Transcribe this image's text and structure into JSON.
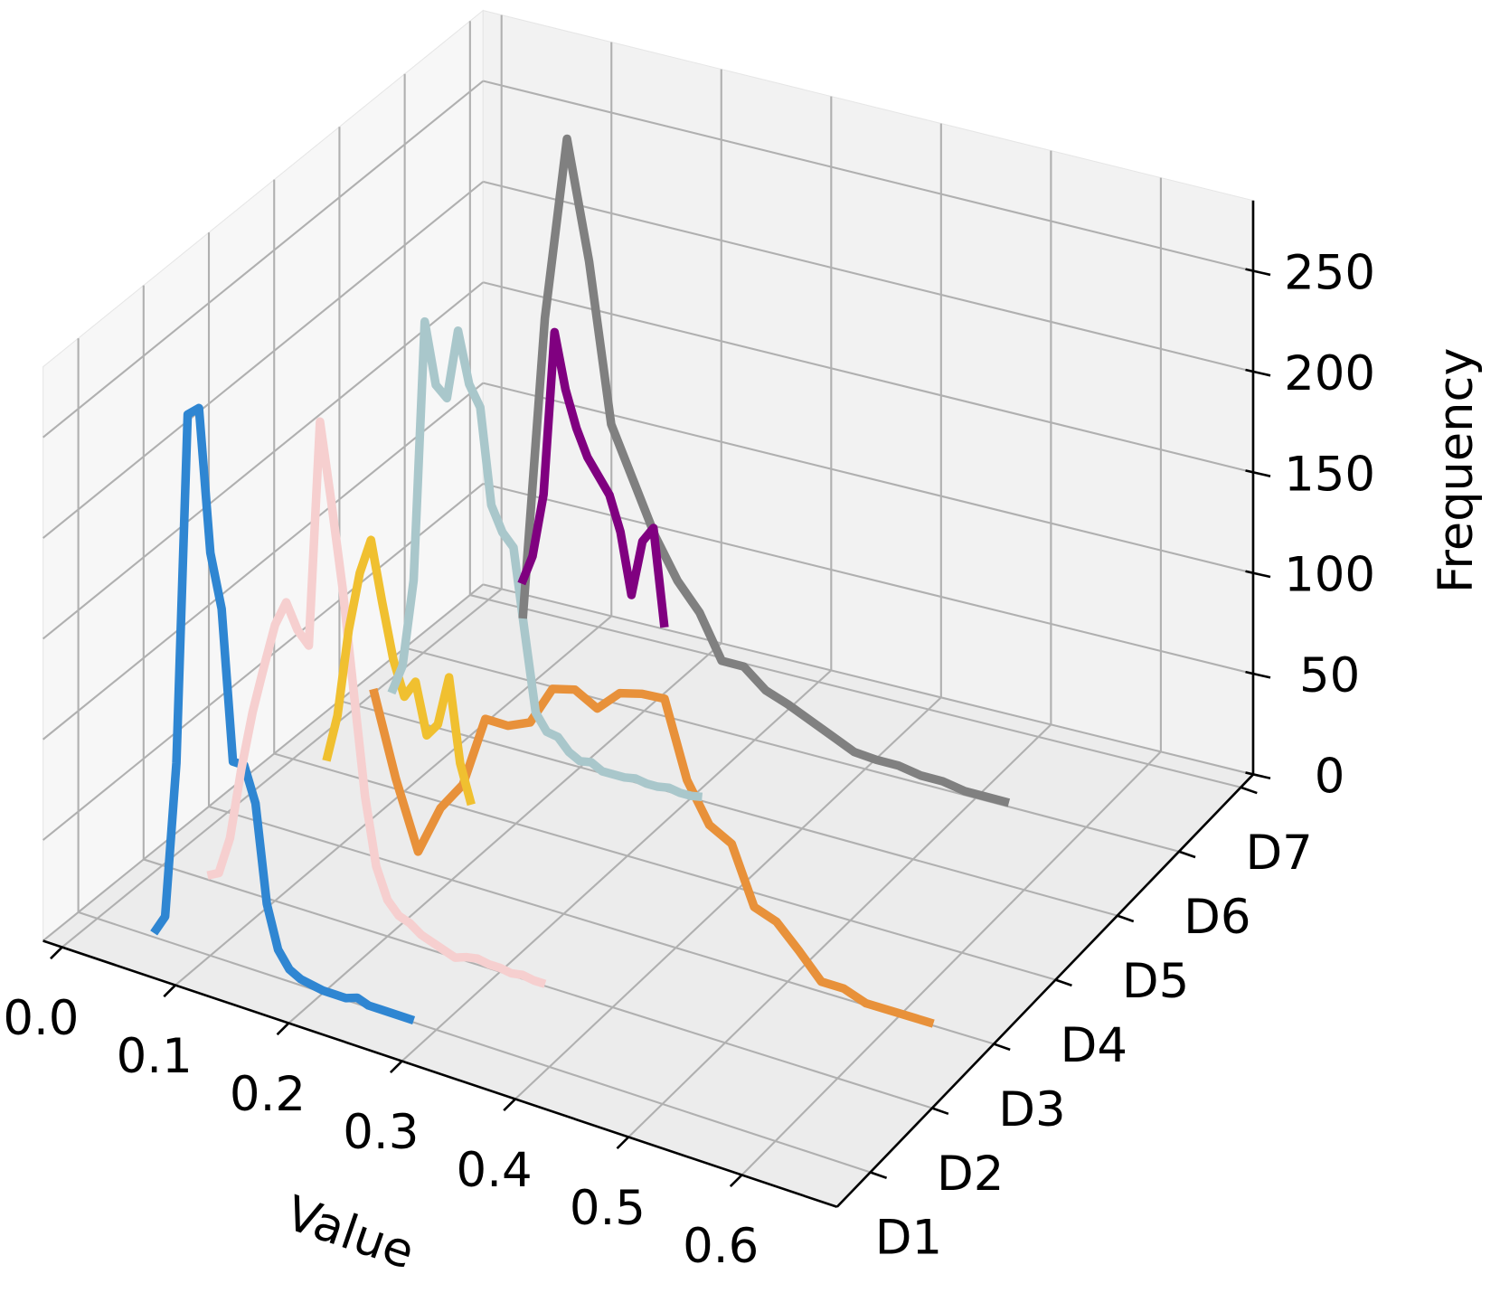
{
  "chart_data": {
    "type": "line3d",
    "xlabel": "Value",
    "zlabel": "Frequency",
    "categories": [
      "D1",
      "D2",
      "D3",
      "D4",
      "D5",
      "D6",
      "D7"
    ],
    "xlim": [
      -0.0168,
      0.684
    ],
    "xticks": [
      {
        "value": 0,
        "label": "0.0"
      },
      0.1,
      0.2,
      0.3,
      0.4,
      0.5,
      0.6
    ],
    "ylim": [
      -0.54,
      6.2
    ],
    "zlim": [
      0,
      285
    ],
    "zticks": [
      0,
      50,
      100,
      150,
      200,
      250
    ],
    "grid": true,
    "series": [
      {
        "color": "#2f86d2",
        "x": [
          0.05,
          0.06,
          0.07,
          0.08,
          0.09,
          0.1,
          0.11,
          0.12,
          0.13,
          0.14,
          0.15,
          0.16,
          0.17,
          0.18,
          0.19,
          0.2,
          0.21,
          0.22,
          0.23,
          0.24,
          0.25,
          0.26,
          0.27,
          0.28
        ],
        "values": [
          2,
          12,
          90,
          265,
          270,
          200,
          174,
          100,
          100,
          83,
          35,
          14,
          6,
          3,
          2,
          1,
          1,
          1,
          3,
          1,
          1,
          1,
          1,
          1
        ]
      },
      {
        "color": "#f6cfcf",
        "x": [
          0.04,
          0.05,
          0.06,
          0.07,
          0.08,
          0.09,
          0.1,
          0.11,
          0.12,
          0.13,
          0.14,
          0.15,
          0.16,
          0.17,
          0.18,
          0.19,
          0.2,
          0.21,
          0.22,
          0.23,
          0.24,
          0.25,
          0.26,
          0.27,
          0.28,
          0.29,
          0.3,
          0.31,
          0.32,
          0.33,
          0.34
        ],
        "values": [
          2,
          5,
          24,
          60,
          90,
          114,
          137,
          150,
          138,
          132,
          245,
          207,
          166,
          116,
          66,
          33,
          18,
          12,
          10,
          6,
          4,
          2,
          0,
          2,
          3,
          2,
          2,
          1,
          2,
          1,
          1
        ]
      },
      {
        "color": "#e8913a",
        "x": [
          0.13,
          0.15,
          0.17,
          0.19,
          0.21,
          0.23,
          0.25,
          0.27,
          0.29,
          0.31,
          0.33,
          0.35,
          0.37,
          0.39,
          0.41,
          0.43,
          0.45,
          0.47,
          0.49,
          0.51,
          0.53,
          0.55,
          0.57,
          0.59,
          0.61,
          0.63
        ],
        "values": [
          83,
          42,
          9,
          34,
          49,
          85,
          85,
          90,
          110,
          113,
          107,
          118,
          121,
          122,
          85,
          66,
          60,
          32,
          28,
          17,
          5,
          5,
          1,
          1,
          1,
          1
        ]
      },
      {
        "color": "#f0c030",
        "x": [
          0.03,
          0.04,
          0.05,
          0.06,
          0.07,
          0.08,
          0.09,
          0.1,
          0.11,
          0.12,
          0.13,
          0.14,
          0.15,
          0.16
        ],
        "values": [
          4,
          28,
          72,
          102,
          120,
          91,
          64,
          47,
          56,
          31,
          38,
          63,
          22,
          3
        ]
      },
      {
        "color": "#a9c7cb",
        "x": [
          0.03,
          0.04,
          0.05,
          0.06,
          0.07,
          0.08,
          0.09,
          0.1,
          0.11,
          0.12,
          0.13,
          0.14,
          0.15,
          0.16,
          0.17,
          0.18,
          0.19,
          0.2,
          0.21,
          0.22,
          0.23,
          0.24,
          0.25,
          0.26,
          0.27,
          0.28,
          0.29,
          0.3,
          0.31
        ],
        "values": [
          11,
          26,
          70,
          200,
          170,
          165,
          200,
          175,
          165,
          118,
          106,
          100,
          60,
          21,
          13,
          12,
          6,
          3,
          4,
          1,
          1,
          1,
          2,
          1,
          1,
          2,
          1,
          1,
          2
        ]
      },
      {
        "color": "#808080",
        "x": [
          0.09,
          0.11,
          0.13,
          0.15,
          0.17,
          0.19,
          0.21,
          0.23,
          0.25,
          0.27,
          0.29,
          0.31,
          0.33,
          0.35,
          0.37,
          0.39,
          0.41,
          0.43,
          0.45,
          0.47,
          0.49,
          0.51,
          0.53
        ],
        "values": [
          30,
          182,
          274,
          216,
          138,
          113,
          88,
          69,
          56,
          35,
          35,
          26,
          22,
          17,
          12,
          7,
          6,
          6,
          4,
          4,
          2,
          2,
          2
        ]
      },
      {
        "color": "#800080",
        "x": [
          0.03,
          0.04,
          0.05,
          0.06,
          0.07,
          0.08,
          0.09,
          0.1,
          0.11,
          0.12,
          0.13,
          0.14,
          0.15,
          0.16
        ],
        "values": [
          12,
          27,
          59,
          141,
          114,
          96,
          83,
          75,
          67,
          50,
          20,
          48,
          56,
          8
        ]
      }
    ]
  }
}
